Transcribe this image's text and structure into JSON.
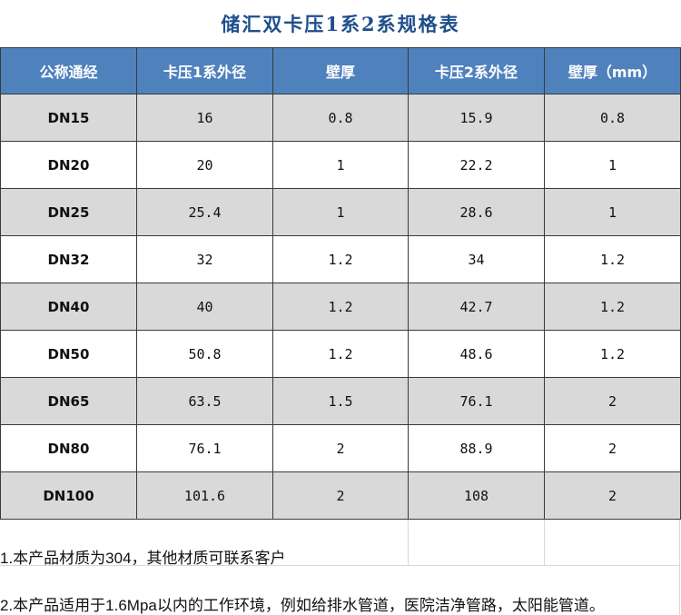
{
  "title": "储汇双卡压1系2系规格表",
  "table": {
    "headers": [
      "公称通经",
      "卡压1系外径",
      "壁厚",
      "卡压2系外径",
      "壁厚（mm）"
    ],
    "rows": [
      [
        "DN15",
        "16",
        "0.8",
        "15.9",
        "0.8"
      ],
      [
        "DN20",
        "20",
        "1",
        "22.2",
        "1"
      ],
      [
        "DN25",
        "25.4",
        "1",
        "28.6",
        "1"
      ],
      [
        "DN32",
        "32",
        "1.2",
        "34",
        "1.2"
      ],
      [
        "DN40",
        "40",
        "1.2",
        "42.7",
        "1.2"
      ],
      [
        "DN50",
        "50.8",
        "1.2",
        "48.6",
        "1.2"
      ],
      [
        "DN65",
        "63.5",
        "1.5",
        "76.1",
        "2"
      ],
      [
        "DN80",
        "76.1",
        "2",
        "88.9",
        "2"
      ],
      [
        "DN100",
        "101.6",
        "2",
        "108",
        "2"
      ]
    ]
  },
  "notes": {
    "note1": "1.本产品材质为304，其他材质可联系客户",
    "note2": "2.本产品适用于1.6Mpa以内的工作环境，例如给排水管道，医院洁净管路，太阳能管道。"
  },
  "colors": {
    "title": "#1f4e8c",
    "header_bg": "#4f81bd",
    "header_text": "#ffffff",
    "row_shaded": "#d9d9d9",
    "row_plain": "#ffffff",
    "border": "#3a3a3a"
  }
}
